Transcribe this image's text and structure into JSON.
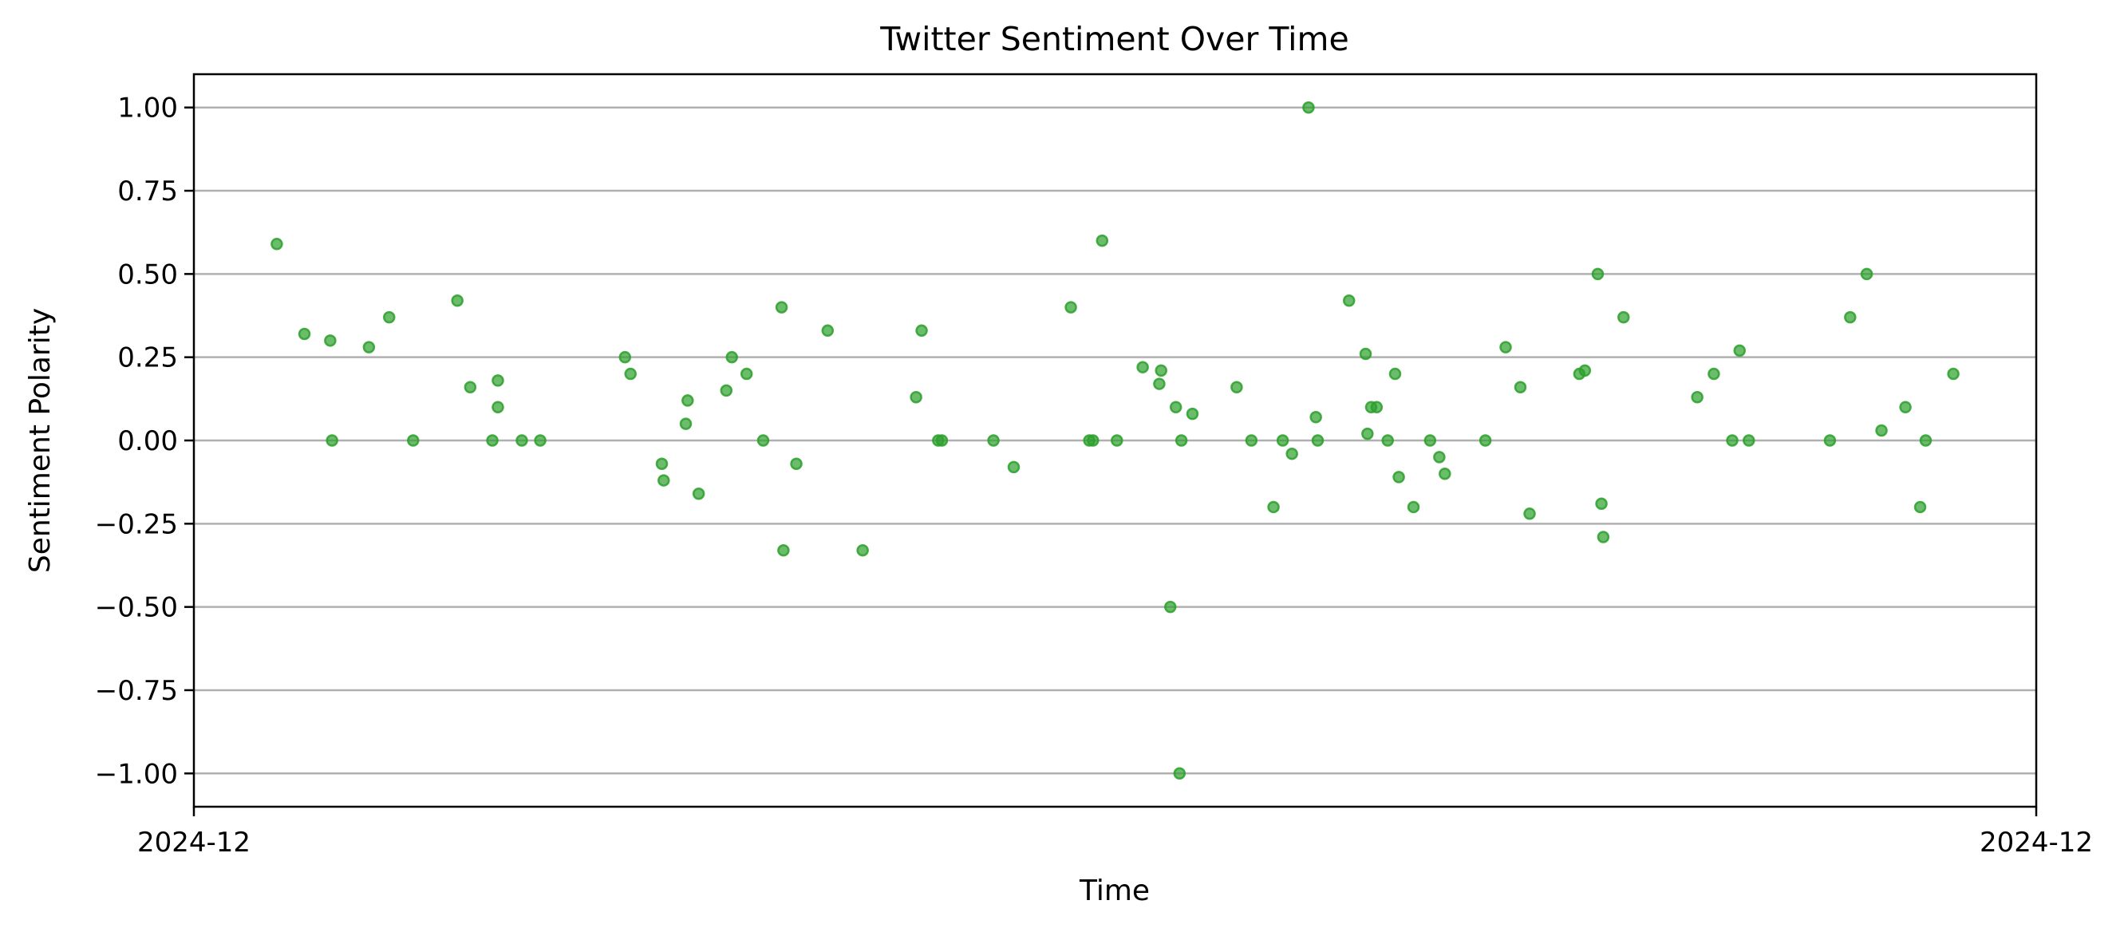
{
  "chart_data": {
    "type": "scatter",
    "title": "Twitter Sentiment Over Time",
    "xlabel": "Time",
    "ylabel": "Sentiment Polarity",
    "x_tick_labels": [
      "2024-12",
      "2024-12"
    ],
    "xlim": [
      0,
      100
    ],
    "ylim": [
      -1.1,
      1.1
    ],
    "y_ticks": [
      1.0,
      0.75,
      0.5,
      0.25,
      0.0,
      -0.25,
      -0.5,
      -0.75,
      -1.0
    ],
    "y_tick_labels": [
      "1.00",
      "0.75",
      "0.50",
      "0.25",
      "0.00",
      "−0.25",
      "−0.50",
      "−0.75",
      "−1.00"
    ],
    "grid": "y",
    "marker_color": "#2ca02c",
    "points": [
      [
        4.5,
        0.59
      ],
      [
        6.0,
        0.32
      ],
      [
        7.4,
        0.3
      ],
      [
        7.5,
        0.0
      ],
      [
        9.5,
        0.28
      ],
      [
        10.6,
        0.37
      ],
      [
        11.9,
        0.0
      ],
      [
        14.3,
        0.42
      ],
      [
        15.0,
        0.16
      ],
      [
        16.2,
        0.0
      ],
      [
        16.5,
        0.18
      ],
      [
        16.5,
        0.1
      ],
      [
        17.8,
        0.0
      ],
      [
        18.8,
        0.0
      ],
      [
        23.4,
        0.25
      ],
      [
        23.7,
        0.2
      ],
      [
        25.4,
        -0.07
      ],
      [
        25.5,
        -0.12
      ],
      [
        26.7,
        0.05
      ],
      [
        26.8,
        0.12
      ],
      [
        27.4,
        -0.16
      ],
      [
        28.9,
        0.15
      ],
      [
        29.2,
        0.25
      ],
      [
        30.0,
        0.2
      ],
      [
        30.9,
        0.0
      ],
      [
        31.9,
        0.4
      ],
      [
        32.0,
        -0.33
      ],
      [
        32.7,
        -0.07
      ],
      [
        34.4,
        0.33
      ],
      [
        36.3,
        -0.33
      ],
      [
        39.2,
        0.13
      ],
      [
        39.5,
        0.33
      ],
      [
        40.4,
        0.0
      ],
      [
        40.6,
        0.0
      ],
      [
        43.4,
        0.0
      ],
      [
        44.5,
        -0.08
      ],
      [
        47.6,
        0.4
      ],
      [
        48.6,
        0.0
      ],
      [
        48.8,
        0.0
      ],
      [
        49.3,
        0.6
      ],
      [
        50.1,
        0.0
      ],
      [
        51.5,
        0.22
      ],
      [
        52.4,
        0.17
      ],
      [
        52.5,
        0.21
      ],
      [
        53.0,
        -0.5
      ],
      [
        53.3,
        0.1
      ],
      [
        53.5,
        -1.0
      ],
      [
        53.6,
        0.0
      ],
      [
        54.2,
        0.08
      ],
      [
        56.6,
        0.16
      ],
      [
        57.4,
        0.0
      ],
      [
        58.6,
        -0.2
      ],
      [
        59.1,
        0.0
      ],
      [
        59.6,
        -0.04
      ],
      [
        60.5,
        1.0
      ],
      [
        60.9,
        0.07
      ],
      [
        61.0,
        0.0
      ],
      [
        62.7,
        0.42
      ],
      [
        63.6,
        0.26
      ],
      [
        63.7,
        0.02
      ],
      [
        63.9,
        0.1
      ],
      [
        64.2,
        0.1
      ],
      [
        64.8,
        0.0
      ],
      [
        65.2,
        0.2
      ],
      [
        65.4,
        -0.11
      ],
      [
        66.2,
        -0.2
      ],
      [
        67.1,
        0.0
      ],
      [
        67.6,
        -0.05
      ],
      [
        67.9,
        -0.1
      ],
      [
        70.1,
        0.0
      ],
      [
        71.2,
        0.28
      ],
      [
        72.0,
        0.16
      ],
      [
        72.5,
        -0.22
      ],
      [
        75.2,
        0.2
      ],
      [
        75.5,
        0.21
      ],
      [
        76.2,
        0.5
      ],
      [
        76.4,
        -0.19
      ],
      [
        76.5,
        -0.29
      ],
      [
        77.6,
        0.37
      ],
      [
        81.6,
        0.13
      ],
      [
        82.5,
        0.2
      ],
      [
        83.5,
        0.0
      ],
      [
        83.9,
        0.27
      ],
      [
        84.4,
        0.0
      ],
      [
        88.8,
        0.0
      ],
      [
        89.9,
        0.37
      ],
      [
        90.8,
        0.5
      ],
      [
        91.6,
        0.03
      ],
      [
        92.9,
        0.1
      ],
      [
        93.7,
        -0.2
      ],
      [
        94.0,
        0.0
      ],
      [
        95.5,
        0.2
      ]
    ]
  }
}
